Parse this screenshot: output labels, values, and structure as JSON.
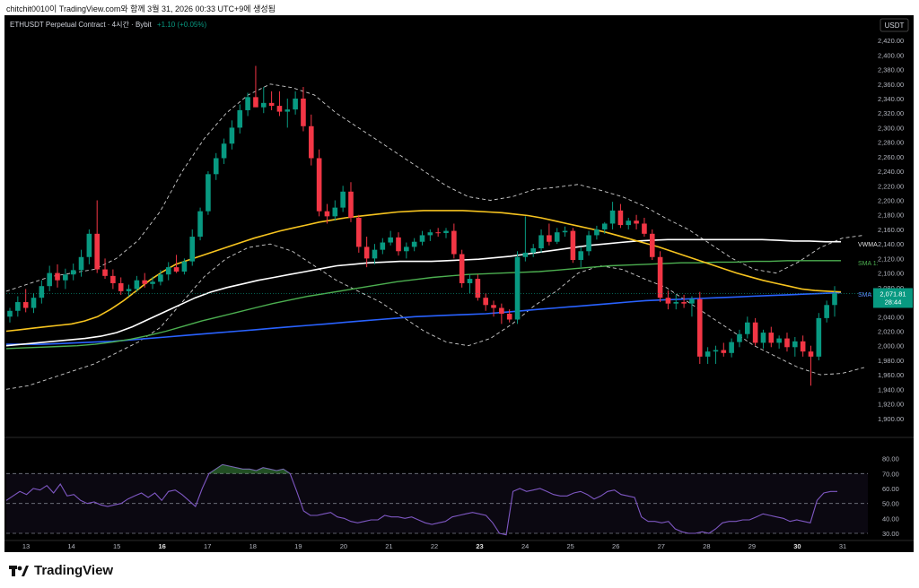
{
  "header": {
    "title": "chitchit0010이 TradingView.com와 함께 3월 31, 2026 00:33 UTC+9에 생성됨"
  },
  "symbol": {
    "name": "ETHUSDT Perpetual Contract · 4시간 · Bybit",
    "change": "+1.10 (+0.05%)",
    "currency": "USDT"
  },
  "footer": {
    "brand": "TradingView"
  },
  "colors": {
    "up": "#089981",
    "down": "#f23645",
    "sma_yellow": "#f7c41f",
    "sma_white": "#ffffff",
    "sma_green": "#4caf50",
    "sma_blue": "#2962ff",
    "bb": "#cccccc",
    "rsi": "#7e57c2",
    "vwma_label": "#e0e0e0"
  },
  "chart_data": {
    "type": "candlestick",
    "price_axis": {
      "ylim": [
        1880,
        2430
      ],
      "ticks": [
        "2,420.00",
        "2,400.00",
        "2,380.00",
        "2,360.00",
        "2,340.00",
        "2,320.00",
        "2,300.00",
        "2,280.00",
        "2,260.00",
        "2,240.00",
        "2,220.00",
        "2,200.00",
        "2,180.00",
        "2,160.00",
        "2,140.00",
        "2,120.00",
        "2,100.00",
        "2,080.00",
        "2,060.00",
        "2,040.00",
        "2,020.00",
        "2,000.00",
        "1,980.00",
        "1,960.00",
        "1,940.00",
        "1,920.00",
        "1,900.00"
      ]
    },
    "rsi_axis": {
      "ylim": [
        27,
        87
      ],
      "ticks": [
        "80.00",
        "70.00",
        "60.00",
        "50.00",
        "40.00",
        "30.00"
      ],
      "band": [
        30,
        70
      ]
    },
    "x_labels": [
      "13",
      "14",
      "15",
      "16",
      "17",
      "18",
      "19",
      "20",
      "21",
      "22",
      "23",
      "24",
      "25",
      "26",
      "27",
      "28",
      "29",
      "30",
      "31"
    ],
    "x_labels_bold": [
      "16",
      "23",
      "30"
    ],
    "last_price": "2,071.81",
    "countdown": "28:44",
    "indicator_labels": [
      "VWMA",
      "SMA 1:",
      "SMA 5"
    ],
    "candles": [
      [
        2040,
        2052,
        2032,
        2048
      ],
      [
        2048,
        2068,
        2040,
        2060
      ],
      [
        2060,
        2078,
        2046,
        2052
      ],
      [
        2052,
        2072,
        2045,
        2066
      ],
      [
        2066,
        2090,
        2058,
        2082
      ],
      [
        2082,
        2110,
        2075,
        2100
      ],
      [
        2100,
        2112,
        2080,
        2090
      ],
      [
        2090,
        2106,
        2078,
        2098
      ],
      [
        2098,
        2113,
        2090,
        2104
      ],
      [
        2104,
        2132,
        2095,
        2122
      ],
      [
        2122,
        2160,
        2112,
        2154
      ],
      [
        2154,
        2200,
        2100,
        2105
      ],
      [
        2105,
        2120,
        2092,
        2096
      ],
      [
        2096,
        2105,
        2078,
        2086
      ],
      [
        2086,
        2094,
        2070,
        2075
      ],
      [
        2075,
        2084,
        2068,
        2078
      ],
      [
        2078,
        2096,
        2074,
        2090
      ],
      [
        2090,
        2100,
        2080,
        2085
      ],
      [
        2085,
        2095,
        2078,
        2088
      ],
      [
        2088,
        2104,
        2083,
        2098
      ],
      [
        2098,
        2115,
        2090,
        2108
      ],
      [
        2108,
        2125,
        2100,
        2102
      ],
      [
        2102,
        2120,
        2098,
        2116
      ],
      [
        2116,
        2160,
        2110,
        2150
      ],
      [
        2150,
        2190,
        2145,
        2185
      ],
      [
        2185,
        2240,
        2180,
        2236
      ],
      [
        2236,
        2265,
        2228,
        2258
      ],
      [
        2258,
        2285,
        2250,
        2278
      ],
      [
        2278,
        2310,
        2270,
        2300
      ],
      [
        2300,
        2332,
        2292,
        2324
      ],
      [
        2324,
        2348,
        2316,
        2342
      ],
      [
        2342,
        2385,
        2330,
        2328
      ],
      [
        2328,
        2356,
        2320,
        2334
      ],
      [
        2334,
        2350,
        2324,
        2330
      ],
      [
        2330,
        2350,
        2316,
        2322
      ],
      [
        2322,
        2340,
        2300,
        2325
      ],
      [
        2325,
        2350,
        2318,
        2340
      ],
      [
        2340,
        2356,
        2295,
        2302
      ],
      [
        2302,
        2318,
        2248,
        2258
      ],
      [
        2258,
        2270,
        2178,
        2185
      ],
      [
        2185,
        2195,
        2168,
        2178
      ],
      [
        2178,
        2200,
        2172,
        2190
      ],
      [
        2190,
        2220,
        2184,
        2212
      ],
      [
        2212,
        2225,
        2170,
        2176
      ],
      [
        2176,
        2180,
        2128,
        2136
      ],
      [
        2136,
        2150,
        2108,
        2120
      ],
      [
        2120,
        2140,
        2112,
        2132
      ],
      [
        2132,
        2148,
        2126,
        2142
      ],
      [
        2142,
        2158,
        2138,
        2149
      ],
      [
        2149,
        2156,
        2124,
        2130
      ],
      [
        2130,
        2142,
        2120,
        2136
      ],
      [
        2136,
        2148,
        2130,
        2143
      ],
      [
        2143,
        2158,
        2138,
        2152
      ],
      [
        2152,
        2160,
        2144,
        2156
      ],
      [
        2156,
        2162,
        2150,
        2155
      ],
      [
        2155,
        2162,
        2148,
        2158
      ],
      [
        2158,
        2168,
        2120,
        2126
      ],
      [
        2126,
        2132,
        2080,
        2086
      ],
      [
        2086,
        2098,
        2072,
        2092
      ],
      [
        2092,
        2098,
        2062,
        2066
      ],
      [
        2066,
        2072,
        2048,
        2056
      ],
      [
        2056,
        2062,
        2040,
        2052
      ],
      [
        2052,
        2058,
        2030,
        2044
      ],
      [
        2044,
        2050,
        2032,
        2036
      ],
      [
        2036,
        2130,
        2030,
        2122
      ],
      [
        2122,
        2178,
        2116,
        2128
      ],
      [
        2128,
        2140,
        2122,
        2134
      ],
      [
        2134,
        2160,
        2128,
        2152
      ],
      [
        2152,
        2168,
        2138,
        2143
      ],
      [
        2143,
        2162,
        2140,
        2156
      ],
      [
        2156,
        2164,
        2150,
        2158
      ],
      [
        2158,
        2162,
        2114,
        2118
      ],
      [
        2118,
        2136,
        2108,
        2130
      ],
      [
        2130,
        2158,
        2124,
        2152
      ],
      [
        2152,
        2165,
        2146,
        2160
      ],
      [
        2160,
        2170,
        2154,
        2168
      ],
      [
        2168,
        2198,
        2160,
        2186
      ],
      [
        2186,
        2195,
        2162,
        2166
      ],
      [
        2166,
        2176,
        2160,
        2172
      ],
      [
        2172,
        2180,
        2160,
        2168
      ],
      [
        2168,
        2176,
        2150,
        2154
      ],
      [
        2154,
        2160,
        2118,
        2122
      ],
      [
        2122,
        2130,
        2060,
        2066
      ],
      [
        2066,
        2076,
        2050,
        2058
      ],
      [
        2058,
        2070,
        2050,
        2060
      ],
      [
        2060,
        2070,
        2052,
        2058
      ],
      [
        2058,
        2068,
        2040,
        2064
      ],
      [
        2064,
        2074,
        1975,
        1985
      ],
      [
        1985,
        1998,
        1975,
        1992
      ],
      [
        1992,
        2000,
        1975,
        1994
      ],
      [
        1994,
        2004,
        1985,
        1990
      ],
      [
        1990,
        2010,
        1984,
        2005
      ],
      [
        2005,
        2022,
        1998,
        2016
      ],
      [
        2016,
        2040,
        2010,
        2032
      ],
      [
        2032,
        2038,
        2000,
        2004
      ],
      [
        2004,
        2022,
        1996,
        2018
      ],
      [
        2018,
        2026,
        1998,
        2004
      ],
      [
        2004,
        2014,
        1996,
        2010
      ],
      [
        2010,
        2018,
        1992,
        1998
      ],
      [
        1998,
        2012,
        1985,
        2006
      ],
      [
        2006,
        2014,
        1985,
        1992
      ],
      [
        1992,
        2000,
        1945,
        1985
      ],
      [
        1985,
        2045,
        1980,
        2038
      ],
      [
        2038,
        2062,
        2032,
        2056
      ],
      [
        2056,
        2082,
        2040,
        2072
      ]
    ],
    "sma_yellow": [
      2020,
      2022,
      2024,
      2026,
      2028,
      2030,
      2034,
      2040,
      2050,
      2062,
      2076,
      2090,
      2102,
      2112,
      2118,
      2124,
      2130,
      2136,
      2142,
      2148,
      2153,
      2158,
      2162,
      2166,
      2170,
      2173,
      2176,
      2178,
      2180,
      2182,
      2184,
      2185,
      2186,
      2186,
      2186,
      2186,
      2185,
      2184,
      2183,
      2181,
      2179,
      2176,
      2172,
      2168,
      2164,
      2160,
      2156,
      2151,
      2146,
      2141,
      2136,
      2130,
      2124,
      2118,
      2112,
      2106,
      2100,
      2095,
      2090,
      2086,
      2082,
      2078,
      2076,
      2075,
      2074
    ],
    "sma_white": [
      2000,
      2002,
      2004,
      2006,
      2008,
      2010,
      2013,
      2018,
      2026,
      2036,
      2046,
      2056,
      2066,
      2074,
      2080,
      2085,
      2090,
      2094,
      2098,
      2102,
      2106,
      2110,
      2112,
      2114,
      2115,
      2116,
      2116,
      2116,
      2117,
      2118,
      2119,
      2121,
      2123,
      2126,
      2129,
      2132,
      2135,
      2138,
      2140,
      2142,
      2144,
      2145,
      2146,
      2146,
      2146,
      2146,
      2146,
      2146,
      2146,
      2145,
      2144,
      2144,
      2143,
      2143
    ],
    "sma_green": [
      1996,
      1997,
      1998,
      1999,
      2000,
      2002,
      2005,
      2009,
      2014,
      2020,
      2027,
      2034,
      2040,
      2046,
      2052,
      2058,
      2063,
      2068,
      2072,
      2076,
      2080,
      2084,
      2088,
      2091,
      2094,
      2096,
      2098,
      2099,
      2100,
      2101,
      2102,
      2104,
      2106,
      2108,
      2110,
      2111,
      2112,
      2113,
      2114,
      2114,
      2115,
      2115,
      2116,
      2116,
      2117,
      2117,
      2117,
      2117
    ],
    "sma_blue": [
      2002,
      2002,
      2002,
      2003,
      2004,
      2005,
      2006,
      2008,
      2010,
      2012,
      2014,
      2016,
      2018,
      2020,
      2022,
      2024,
      2026,
      2028,
      2030,
      2032,
      2034,
      2036,
      2038,
      2040,
      2041,
      2042,
      2043,
      2044,
      2046,
      2048,
      2050,
      2052,
      2054,
      2056,
      2058,
      2060,
      2062,
      2063,
      2064,
      2065,
      2066,
      2067,
      2068,
      2069,
      2070,
      2071,
      2072,
      2073
    ],
    "bb_upper": [
      2075,
      2085,
      2095,
      2100,
      2105,
      2120,
      2145,
      2185,
      2240,
      2285,
      2320,
      2345,
      2360,
      2355,
      2345,
      2320,
      2300,
      2280,
      2260,
      2240,
      2220,
      2205,
      2200,
      2205,
      2215,
      2218,
      2222,
      2214,
      2205,
      2192,
      2175,
      2160,
      2140,
      2120,
      2105,
      2100,
      2115,
      2135,
      2148,
      2152
    ],
    "bb_lower": [
      1940,
      1945,
      1955,
      1965,
      1975,
      1990,
      2005,
      2025,
      2060,
      2095,
      2120,
      2135,
      2140,
      2130,
      2110,
      2090,
      2075,
      2060,
      2040,
      2020,
      2005,
      2000,
      2010,
      2030,
      2055,
      2075,
      2100,
      2110,
      2105,
      2092,
      2080,
      2060,
      2040,
      2020,
      2000,
      1985,
      1970,
      1960,
      1962,
      1970
    ],
    "rsi": [
      52,
      55,
      58,
      56,
      60,
      59,
      62,
      57,
      63,
      55,
      56,
      52,
      50,
      51,
      49,
      48,
      49,
      50,
      53,
      55,
      57,
      54,
      57,
      52,
      58,
      59,
      56,
      52,
      48,
      60,
      70,
      73,
      76,
      75,
      74,
      73,
      73,
      72,
      74,
      73,
      72,
      73,
      70,
      58,
      45,
      42,
      42,
      43,
      44,
      41,
      40,
      38,
      37,
      38,
      39,
      39,
      42,
      41,
      41,
      40,
      41,
      39,
      37,
      36,
      37,
      38,
      41,
      42,
      43,
      44,
      43,
      42,
      37,
      30,
      29,
      58,
      60,
      58,
      59,
      60,
      58,
      56,
      55,
      55,
      57,
      58,
      56,
      53,
      55,
      58,
      59,
      56,
      55,
      54,
      41,
      38,
      38,
      37,
      38,
      33,
      31,
      30,
      30,
      31,
      30,
      33,
      37,
      38,
      38,
      39,
      39,
      41,
      43,
      42,
      41,
      40,
      38,
      39,
      38,
      37,
      52,
      57,
      58,
      58
    ]
  }
}
